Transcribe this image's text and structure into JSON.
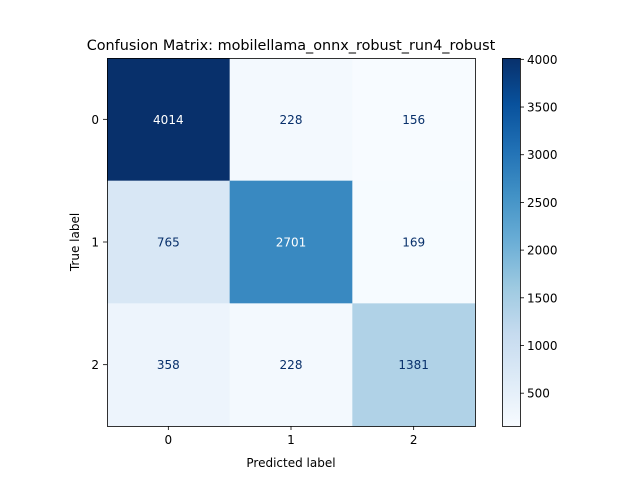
{
  "chart_data": {
    "type": "heatmap",
    "title": "Confusion Matrix: mobilellama_onnx_robust_run4_robust",
    "xlabel": "Predicted label",
    "ylabel": "True label",
    "x_categories": [
      "0",
      "1",
      "2"
    ],
    "y_categories": [
      "0",
      "1",
      "2"
    ],
    "values": [
      [
        4014,
        228,
        156
      ],
      [
        765,
        2701,
        169
      ],
      [
        358,
        228,
        1381
      ]
    ],
    "colorbar": {
      "colormap": "Blues",
      "vmin": 156,
      "vmax": 4014,
      "ticks": [
        500,
        1000,
        1500,
        2000,
        2500,
        3000,
        3500,
        4000
      ]
    }
  }
}
